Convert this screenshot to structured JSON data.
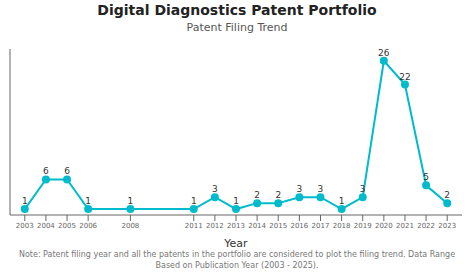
{
  "chart_data": {
    "type": "line",
    "title": "Digital Diagnostics Patent Portfolio",
    "subtitle": "Patent Filing Trend",
    "xlabel": "Year",
    "note": "Note: Patent filing year and all the patents in the portfolio are considered to plot the filing trend. Data Range Based on Publication Year (2003 - 2025).",
    "x": [
      2003,
      2004,
      2005,
      2006,
      2008,
      2011,
      2012,
      2013,
      2014,
      2015,
      2016,
      2017,
      2018,
      2019,
      2020,
      2021,
      2022,
      2023
    ],
    "values": [
      1,
      6,
      6,
      1,
      1,
      1,
      3,
      1,
      2,
      2,
      3,
      3,
      1,
      3,
      26,
      22,
      5,
      2
    ],
    "color": "#00BBCC",
    "marker": "circle",
    "xlim": [
      2002.3,
      2023.7
    ],
    "xticks": [
      2003,
      2004,
      2005,
      2006,
      2008,
      2011,
      2012,
      2013,
      2014,
      2015,
      2016,
      2017,
      2018,
      2019,
      2020,
      2021,
      2022,
      2023
    ],
    "ylim": [
      0,
      28
    ],
    "data_labels": true,
    "tick_labels": "x",
    "grid": false
  }
}
